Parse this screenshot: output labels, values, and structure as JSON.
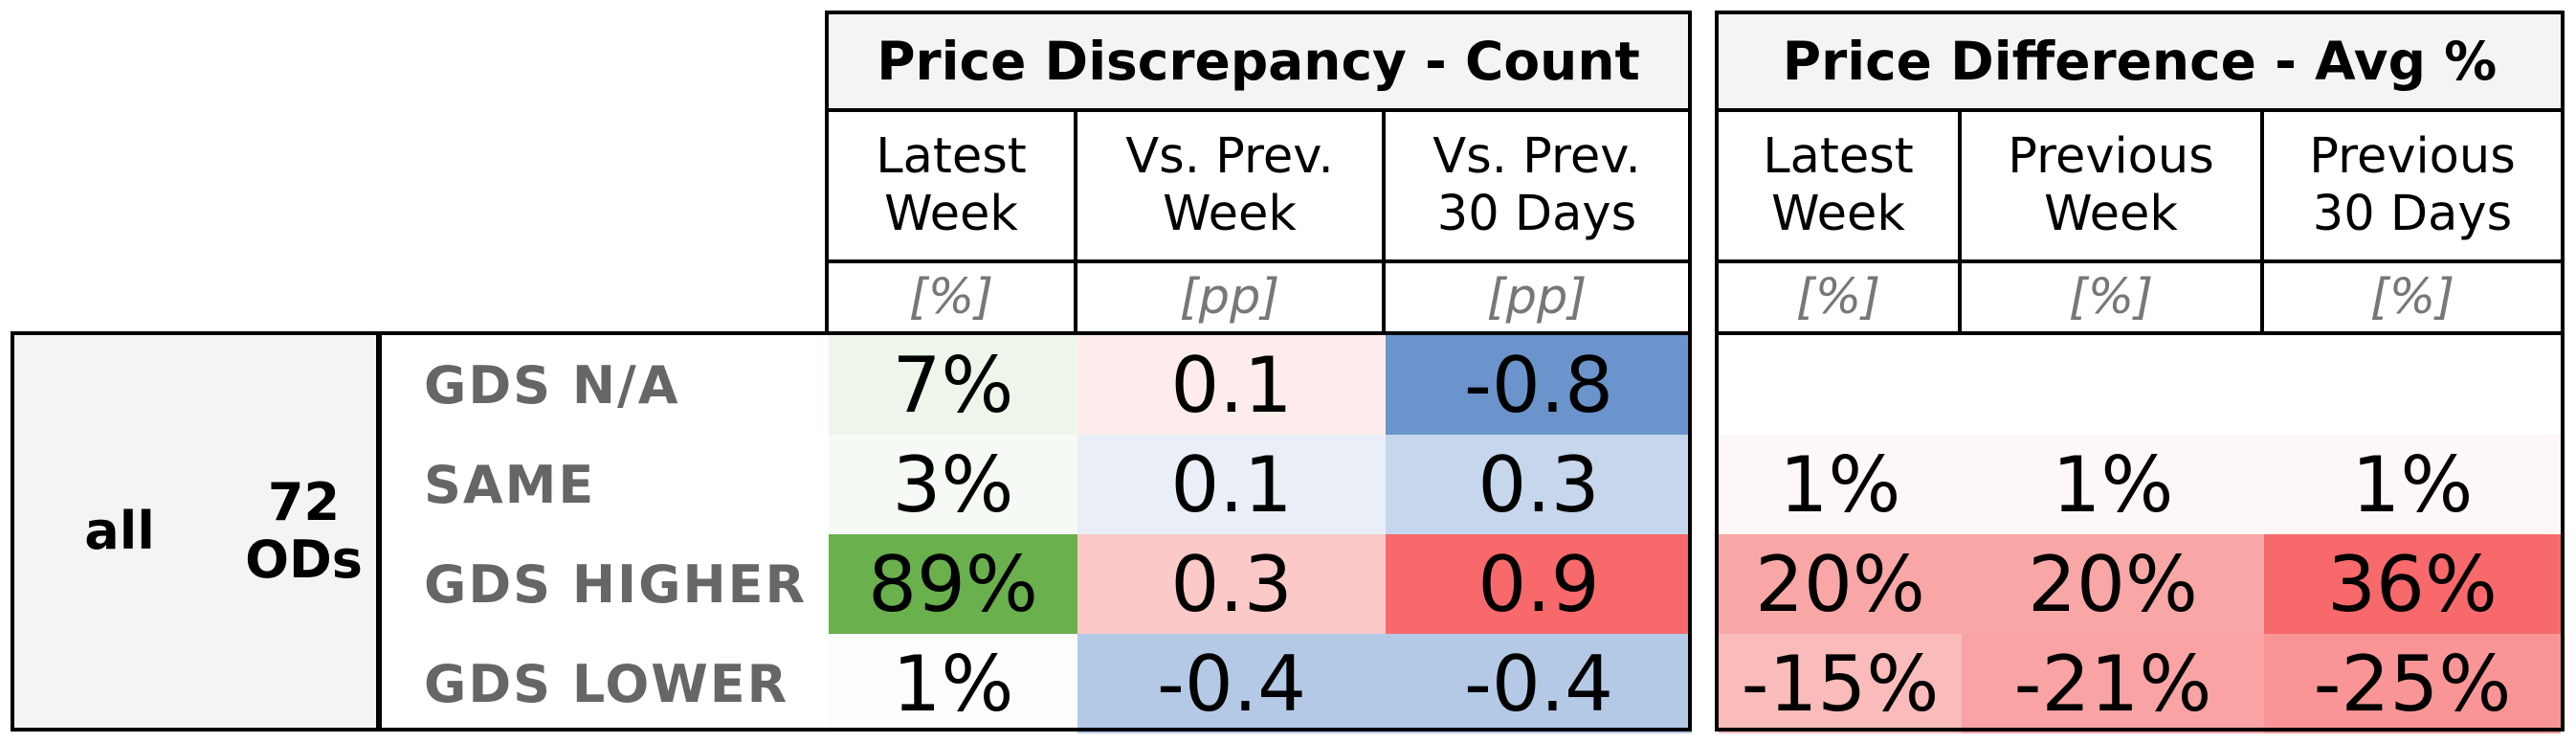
{
  "chart_data": {
    "type": "table",
    "groups": [
      {
        "title": "Price Discrepancy - Count",
        "columns": [
          {
            "label": "Latest\nWeek",
            "unit": "[%]"
          },
          {
            "label": "Vs. Prev.\nWeek",
            "unit": "[pp]"
          },
          {
            "label": "Vs. Prev.\n30 Days",
            "unit": "[pp]"
          }
        ]
      },
      {
        "title": "Price Difference - Avg %",
        "columns": [
          {
            "label": "Latest\nWeek",
            "unit": "[%]"
          },
          {
            "label": "Previous\nWeek",
            "unit": "[%]"
          },
          {
            "label": "Previous\n30 Days",
            "unit": "[%]"
          }
        ]
      }
    ],
    "segment": "all",
    "od_count": "72\nODs",
    "rows": [
      {
        "label": "GDS N/A",
        "values": [
          "7%",
          "0.1",
          "-0.8",
          "",
          "",
          ""
        ],
        "colors": [
          "#eef6ec",
          "#fdeceb",
          "#6a94cb",
          "#ffffff",
          "#ffffff",
          "#ffffff"
        ]
      },
      {
        "label": "SAME",
        "values": [
          "3%",
          "0.1",
          "0.3",
          "1%",
          "1%",
          "1%"
        ],
        "colors": [
          "#f6faf4",
          "#e9eef7",
          "#c6d6ec",
          "#fdf7f7",
          "#fdf7f7",
          "#fdf7f7"
        ]
      },
      {
        "label": "GDS HIGHER",
        "values": [
          "89%",
          "0.3",
          "0.9",
          "20%",
          "20%",
          "36%"
        ],
        "colors": [
          "#6ab04c",
          "#fbc9c8",
          "#f8696b",
          "#f9a6a7",
          "#f9a6a7",
          "#f8696b"
        ]
      },
      {
        "label": "GDS LOWER",
        "values": [
          "1%",
          "-0.4",
          "-0.4",
          "-15%",
          "-21%",
          "-25%"
        ],
        "colors": [
          "#fcfdfc",
          "#b4c9e6",
          "#b4c9e6",
          "#fabbbb",
          "#f9a3a4",
          "#f99596"
        ]
      }
    ]
  }
}
